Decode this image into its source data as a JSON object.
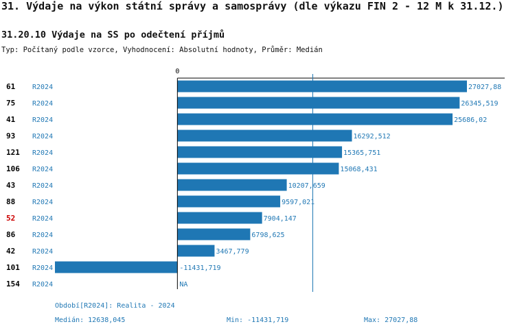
{
  "header": {
    "title": "31. Výdaje na výkon státní správy a samosprávy (dle výkazu FIN 2 - 12 M k 31.12.)",
    "subtitle": "31.20.10 Výdaje na SS po odečtení příjmů",
    "meta": "Typ: Počítaný podle vzorce, Vyhodnocení: Absolutní hodnoty, Průměr: Medián"
  },
  "colors": {
    "bar": "#1f77b4",
    "label": "#1f77b4",
    "highlight": "#cc0000",
    "axis": "#000000",
    "median_line": "#1f77b4"
  },
  "chart_data": {
    "type": "bar",
    "orientation": "horizontal",
    "axis_zero_label": "0",
    "period_label": "R2024",
    "rows": [
      {
        "id": "61",
        "period": "R2024",
        "value": 27027.88,
        "label": "27027,88",
        "highlight": false
      },
      {
        "id": "75",
        "period": "R2024",
        "value": 26345.519,
        "label": "26345,519",
        "highlight": false
      },
      {
        "id": "41",
        "period": "R2024",
        "value": 25686.02,
        "label": "25686,02",
        "highlight": false
      },
      {
        "id": "93",
        "period": "R2024",
        "value": 16292.512,
        "label": "16292,512",
        "highlight": false
      },
      {
        "id": "121",
        "period": "R2024",
        "value": 15365.751,
        "label": "15365,751",
        "highlight": false
      },
      {
        "id": "106",
        "period": "R2024",
        "value": 15068.431,
        "label": "15068,431",
        "highlight": false
      },
      {
        "id": "43",
        "period": "R2024",
        "value": 10207.659,
        "label": "10207,659",
        "highlight": false
      },
      {
        "id": "88",
        "period": "R2024",
        "value": 9597.021,
        "label": "9597,021",
        "highlight": false
      },
      {
        "id": "52",
        "period": "R2024",
        "value": 7904.147,
        "label": "7904,147",
        "highlight": true
      },
      {
        "id": "86",
        "period": "R2024",
        "value": 6798.625,
        "label": "6798,625",
        "highlight": false
      },
      {
        "id": "42",
        "period": "R2024",
        "value": 3467.779,
        "label": "3467,779",
        "highlight": false
      },
      {
        "id": "101",
        "period": "R2024",
        "value": -11431.719,
        "label": "-11431,719",
        "highlight": false
      },
      {
        "id": "154",
        "period": "R2024",
        "value": null,
        "label": "NA",
        "highlight": false
      }
    ],
    "median": 12638.045,
    "xlim": [
      -11431.719,
      27027.88
    ]
  },
  "footer": {
    "period": "Období[R2024]: Realita - 2024",
    "median": "Medián: 12638,045",
    "min": "Min: -11431,719",
    "max": "Max: 27027,88"
  }
}
